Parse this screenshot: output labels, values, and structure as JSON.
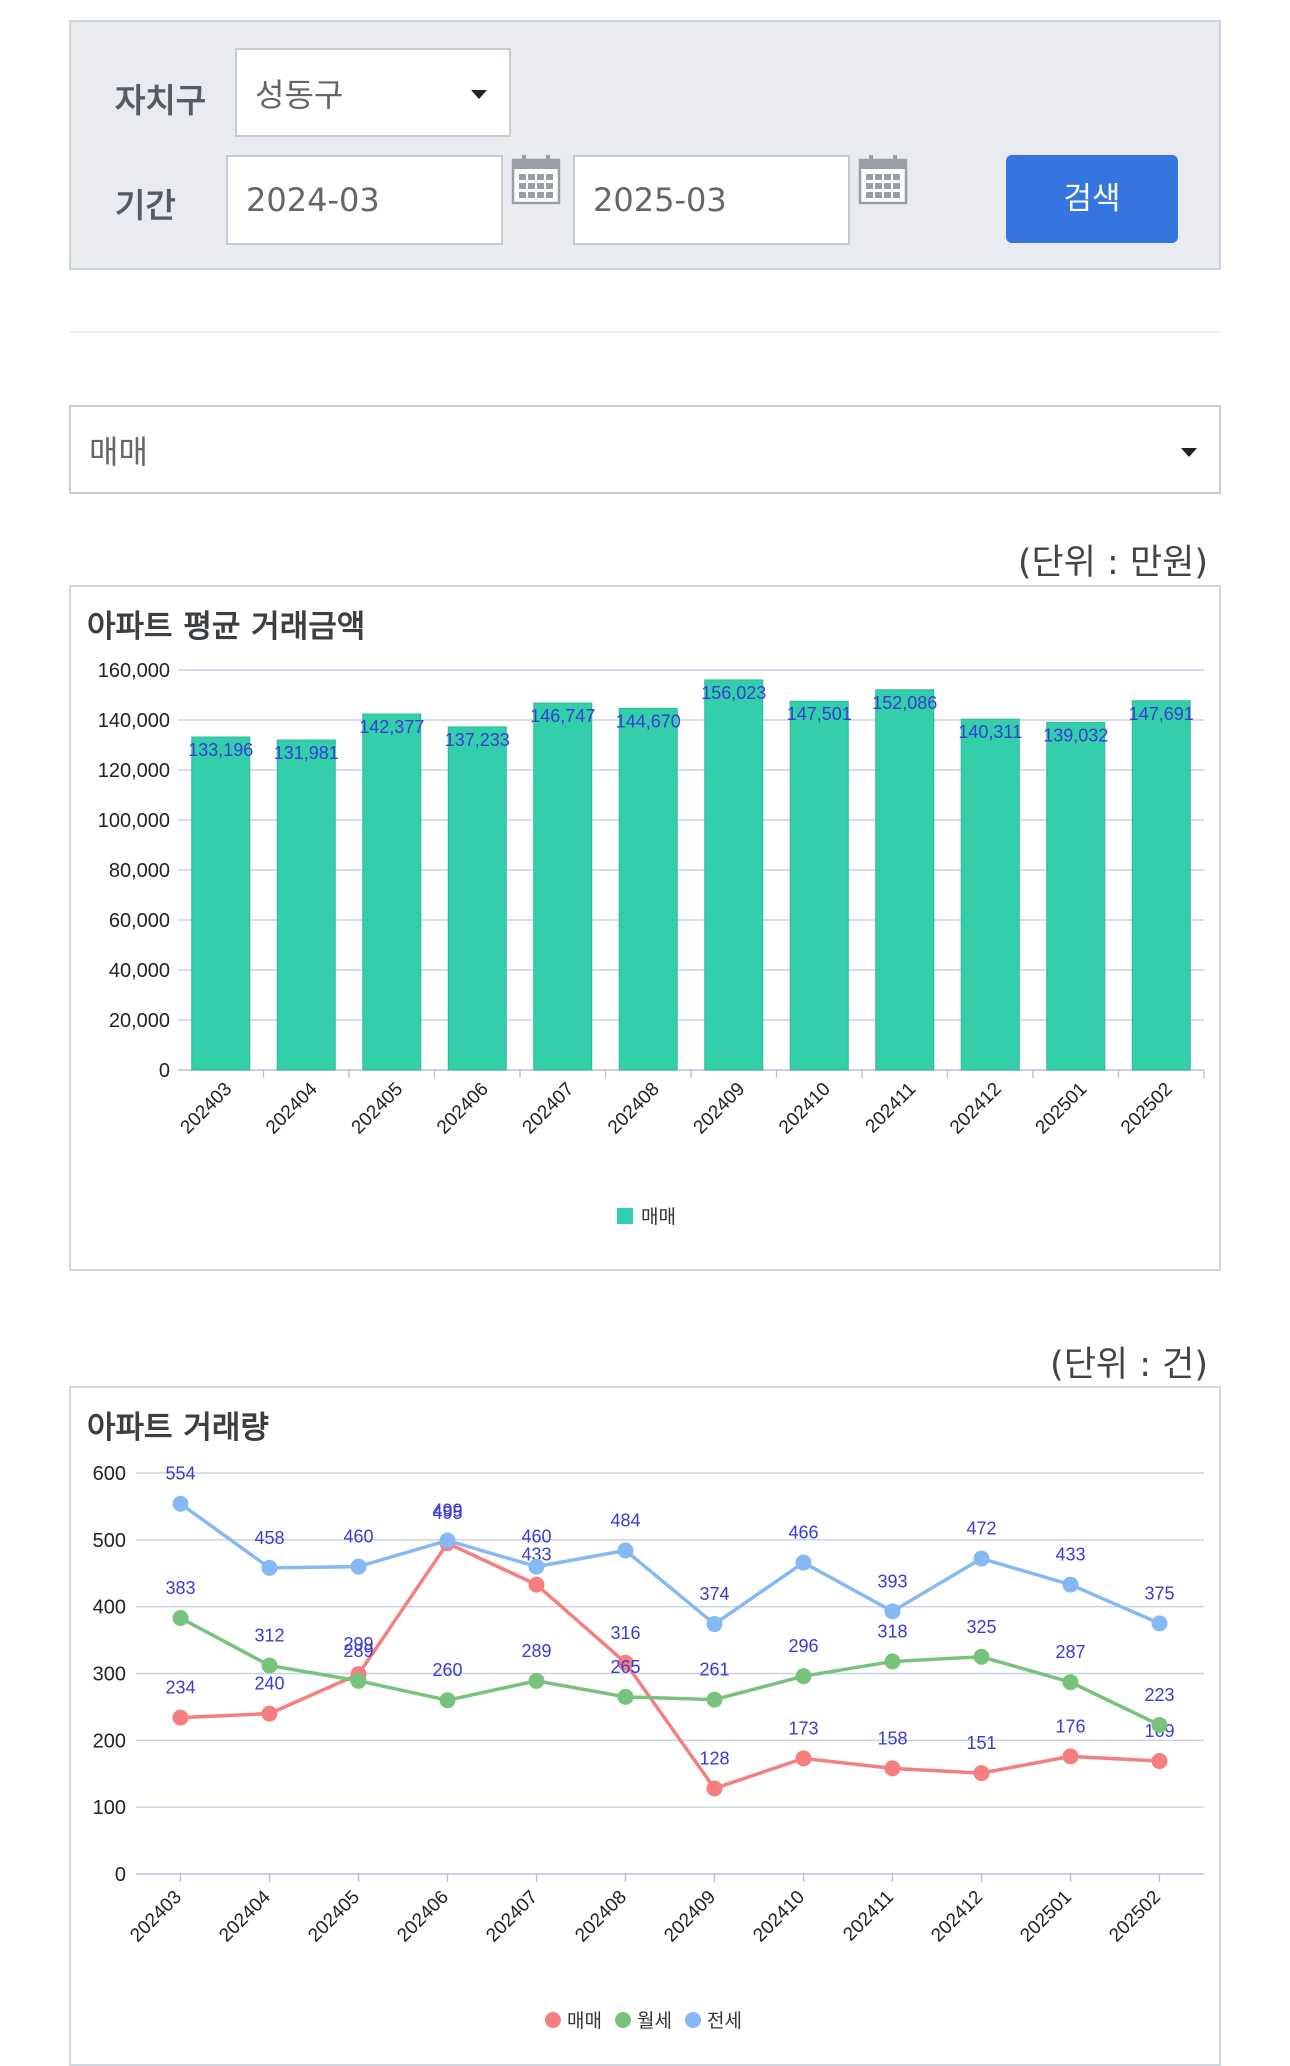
{
  "search": {
    "district_label": "자치구",
    "district_value": "성동구",
    "period_label": "기간",
    "start_value": "2024-03",
    "end_value": "2025-03",
    "search_button": "검색"
  },
  "deal_type": {
    "selected": "매매"
  },
  "colors": {
    "accent": "#3575e0",
    "bar": "#33cfab",
    "label": "#3a3ad6"
  },
  "charts": {
    "price": {
      "unit": "(단위 : 만원)",
      "title": "아파트 평균 거래금액"
    },
    "volume": {
      "unit": "(단위 : 건)",
      "title": "아파트 거래량"
    }
  },
  "chart_data": [
    {
      "type": "bar",
      "title": "아파트 평균 거래금액",
      "categories": [
        "202403",
        "202404",
        "202405",
        "202406",
        "202407",
        "202408",
        "202409",
        "202410",
        "202411",
        "202412",
        "202501",
        "202502"
      ],
      "series": [
        {
          "name": "매매",
          "color": "#33cfab",
          "values": [
            133196,
            131981,
            142377,
            137233,
            146747,
            144670,
            156023,
            147501,
            152086,
            140311,
            139032,
            147691
          ]
        }
      ],
      "ylim": [
        0,
        160000
      ],
      "yticks": [
        0,
        20000,
        40000,
        60000,
        80000,
        100000,
        120000,
        140000,
        160000
      ],
      "grid": true,
      "legend": "bottom"
    },
    {
      "type": "line",
      "title": "아파트 거래량",
      "categories": [
        "202403",
        "202404",
        "202405",
        "202406",
        "202407",
        "202408",
        "202409",
        "202410",
        "202411",
        "202412",
        "202501",
        "202502"
      ],
      "series": [
        {
          "name": "매매",
          "color": "#f57f7f",
          "values": [
            234,
            240,
            299,
            495,
            433,
            316,
            128,
            173,
            158,
            151,
            176,
            169
          ]
        },
        {
          "name": "월세",
          "color": "#79c27d",
          "values": [
            383,
            312,
            289,
            260,
            289,
            265,
            261,
            296,
            318,
            325,
            287,
            223
          ]
        },
        {
          "name": "전세",
          "color": "#86b9f4",
          "values": [
            554,
            458,
            460,
            499,
            460,
            484,
            374,
            466,
            393,
            472,
            433,
            375
          ]
        }
      ],
      "ylim": [
        0,
        600
      ],
      "yticks": [
        0,
        100,
        200,
        300,
        400,
        500,
        600
      ],
      "grid": true,
      "legend": "bottom"
    }
  ]
}
